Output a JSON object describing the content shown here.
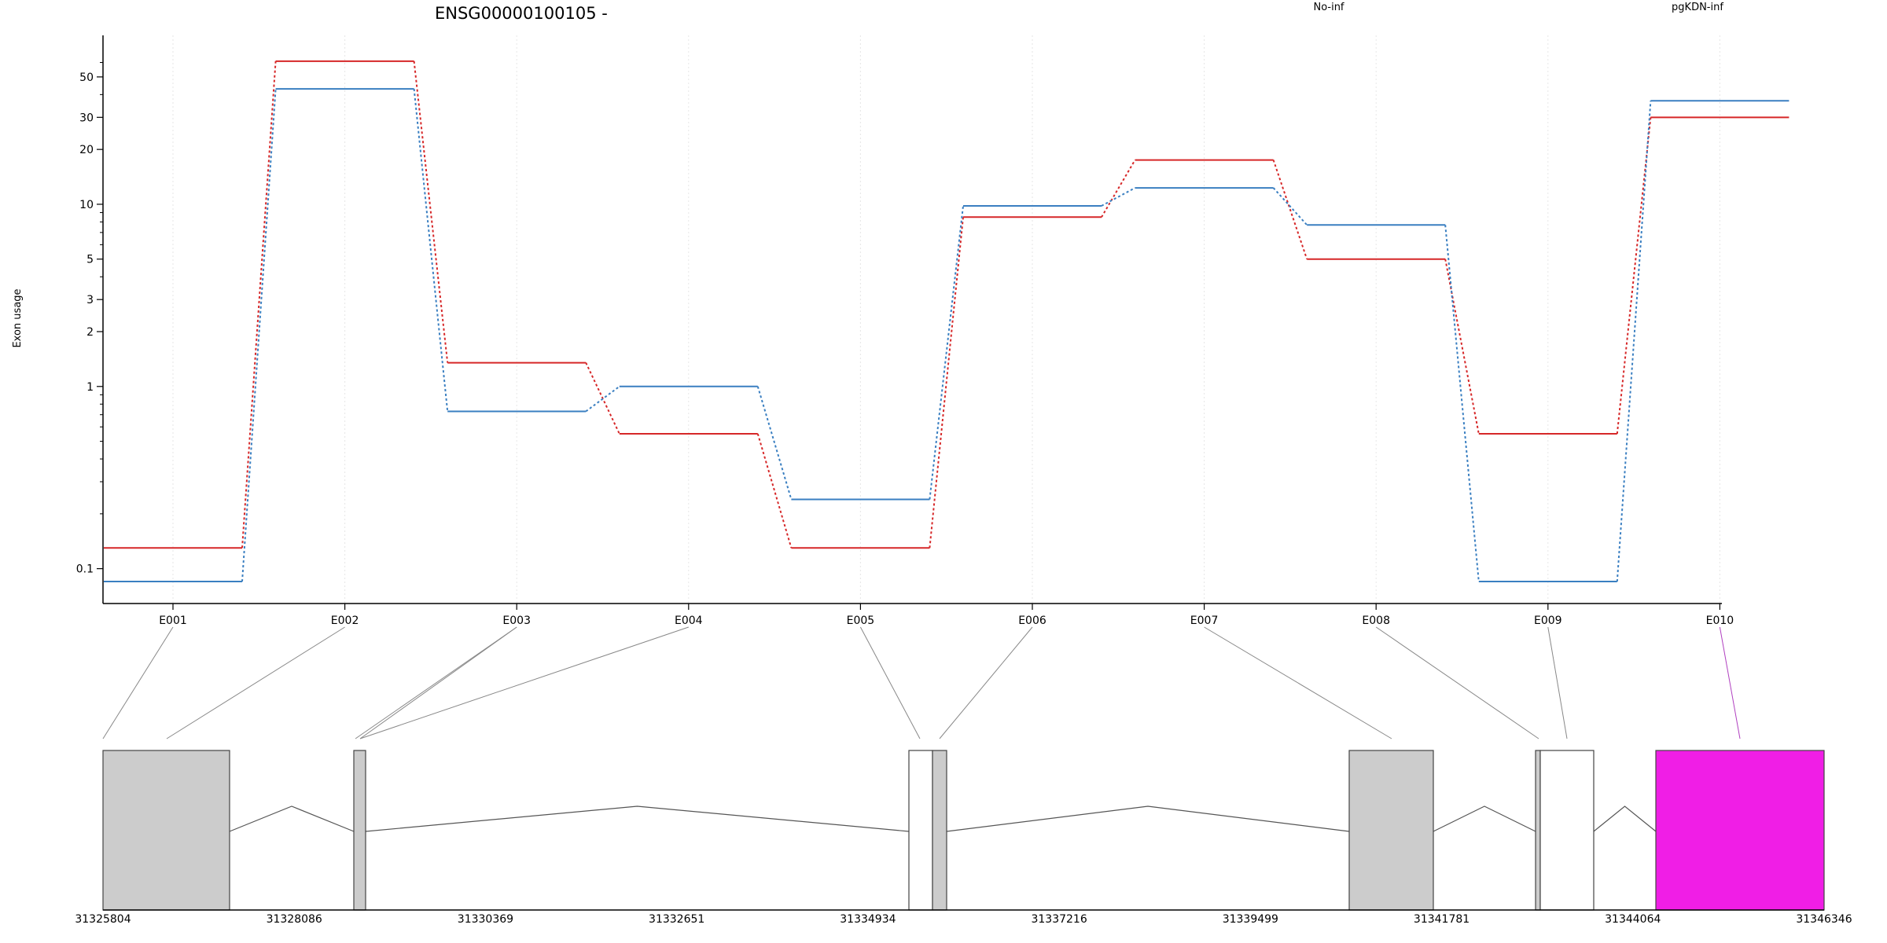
{
  "chart_data": {
    "type": "line",
    "title": "ENSG00000100105 -",
    "ylabel": "Exon usage",
    "xlabel": "",
    "y_scale": "log",
    "ylim": [
      0.085,
      70
    ],
    "y_ticks": [
      0.1,
      1,
      2,
      3,
      5,
      10,
      20,
      30,
      50
    ],
    "y_tick_labels": [
      "0.1",
      "1",
      "2",
      "3",
      "5",
      "10",
      "20",
      "30",
      "50"
    ],
    "grid": "vertical dotted",
    "legend_placement": "top",
    "categories": [
      "E001",
      "E002",
      "E003",
      "E004",
      "E005",
      "E006",
      "E007",
      "E008",
      "E009",
      "E010"
    ],
    "series": [
      {
        "name": "No-inf",
        "color": "#d62728",
        "values": [
          0.13,
          61,
          1.35,
          0.55,
          0.13,
          8.5,
          17.5,
          5.0,
          0.55,
          30
        ]
      },
      {
        "name": "pgKDN-inf",
        "color": "#3a7fc1",
        "values": [
          0.085,
          43,
          0.73,
          1.0,
          0.24,
          9.8,
          12.3,
          7.7,
          0.085,
          37
        ]
      }
    ],
    "gene_model": {
      "axis_start": 31325804,
      "axis_end": 31346346,
      "coordinate_labels": [
        "31325804",
        "31328086",
        "31330369",
        "31332651",
        "31334934",
        "31337216",
        "31339499",
        "31341781",
        "31344064",
        "31346346"
      ],
      "exon_fill": "#cccccc",
      "utr_fill": "#ffffff",
      "highlight_fill": "#f01ee6"
    }
  }
}
